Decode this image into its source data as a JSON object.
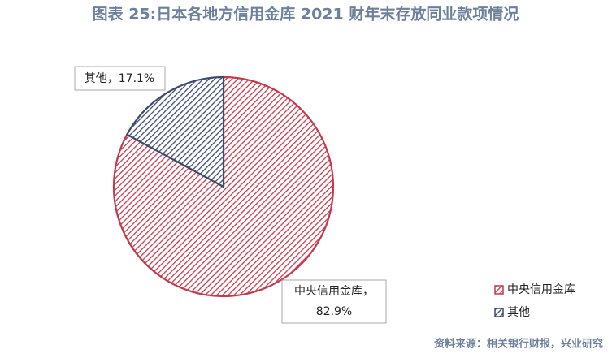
{
  "chart_data": {
    "type": "pie",
    "title": "图表 25:日本各地方信用金库 2021 财年末存放同业款项情况",
    "categories": [
      "中央信用金库",
      "其他"
    ],
    "values": [
      82.9,
      17.1
    ],
    "value_labels": [
      "82.9%",
      "17.1%"
    ],
    "label_separator": "，",
    "colors": [
      "#c23b4e",
      "#3c4a6e"
    ],
    "legend": "lower right",
    "source": "资料来源：相关银行财报，兴业研究"
  }
}
